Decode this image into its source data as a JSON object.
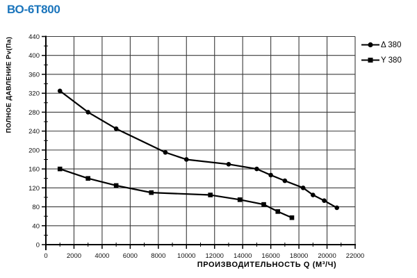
{
  "colors": {
    "title": "#1B75BC",
    "axis": "#000000",
    "grid": "#3A3A3A",
    "series": "#000000",
    "background": "#FFFFFF"
  },
  "chart_data": {
    "type": "line",
    "title": "ВО-6Т800",
    "xlabel": "ПРОИЗВОДИТЕЛЬНОСТЬ  Q  (М³/Ч)",
    "ylabel": "ПОЛНОЕ ДАВЛЕНИЕ  Pv(Па)",
    "xlim": [
      0,
      22000
    ],
    "ylim": [
      0,
      440
    ],
    "x_major_step": 2000,
    "x_minor_step": 1000,
    "y_major_step": 40,
    "y_minor_step": 20,
    "x_tick_labels": [
      "0",
      "2000",
      "4000",
      "6000",
      "8000",
      "10000",
      "12000",
      "14000",
      "16000",
      "18000",
      "20000",
      "22000"
    ],
    "y_tick_labels": [
      "0",
      "40",
      "80",
      "120",
      "160",
      "200",
      "240",
      "280",
      "320",
      "360",
      "400",
      "440"
    ],
    "grid": true,
    "legend": {
      "position": "top-right",
      "entries": [
        {
          "label": "Δ 380",
          "marker": "circle"
        },
        {
          "label": "Y 380",
          "marker": "square"
        }
      ]
    },
    "series": [
      {
        "name": "Δ 380",
        "marker": "circle",
        "color": "#000000",
        "points": [
          [
            1000,
            325
          ],
          [
            3000,
            280
          ],
          [
            5000,
            245
          ],
          [
            8500,
            195
          ],
          [
            10000,
            180
          ],
          [
            13000,
            170
          ],
          [
            15000,
            160
          ],
          [
            16000,
            147
          ],
          [
            17000,
            135
          ],
          [
            18300,
            120
          ],
          [
            19000,
            105
          ],
          [
            19800,
            93
          ],
          [
            20700,
            78
          ]
        ]
      },
      {
        "name": "Y 380",
        "marker": "square",
        "color": "#000000",
        "points": [
          [
            1000,
            160
          ],
          [
            3000,
            140
          ],
          [
            5000,
            125
          ],
          [
            7500,
            110
          ],
          [
            11700,
            105
          ],
          [
            13800,
            95
          ],
          [
            15500,
            85
          ],
          [
            16500,
            70
          ],
          [
            17500,
            57
          ]
        ]
      }
    ]
  }
}
